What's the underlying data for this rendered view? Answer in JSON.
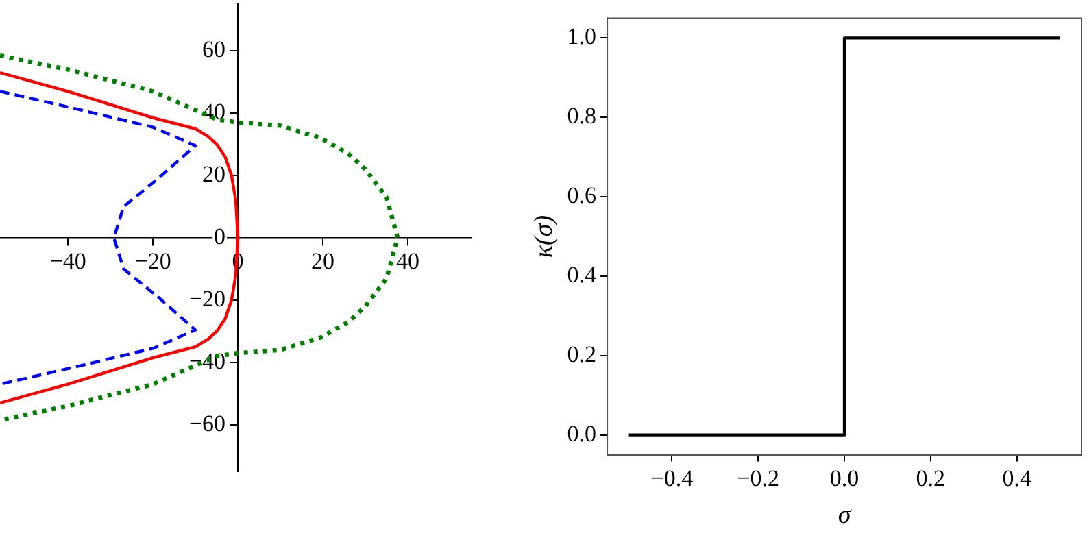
{
  "chart_data": [
    {
      "type": "line",
      "xlim": [
        -56,
        55
      ],
      "ylim": [
        -75,
        75
      ],
      "xticks": [
        {
          "value": -40,
          "label": "−40"
        },
        {
          "value": -20,
          "label": "−20"
        },
        0,
        20,
        40
      ],
      "yticks": [
        {
          "value": -60,
          "label": "−60"
        },
        {
          "value": -40,
          "label": "−40"
        },
        {
          "value": -20,
          "label": "−20"
        },
        0,
        20,
        40,
        60
      ],
      "grid": false,
      "legend": false,
      "marker": "none",
      "series": [
        {
          "color": "#ff0000",
          "line_style": "solid",
          "x": [
            -56,
            -40,
            -20,
            -10,
            -7,
            -5,
            -3,
            -1.5,
            -0.5,
            0,
            -0.5,
            -1.5,
            -3,
            -5,
            -7,
            -10,
            -20,
            -40,
            -56
          ],
          "values": [
            53,
            47,
            38.5,
            35,
            32.5,
            30,
            26,
            20,
            12,
            0,
            -12,
            -20,
            -26,
            -30,
            -32.5,
            -35,
            -38.5,
            -47,
            -53
          ]
        },
        {
          "color": "#0000ff",
          "line_style": "dashed",
          "x": [
            -56,
            -40,
            -20,
            -10,
            -13,
            -18.8,
            -26.9,
            -29.2,
            -26.9,
            -18.8,
            -13,
            -10,
            -20,
            -40,
            -56
          ],
          "values": [
            47,
            42,
            35.5,
            29.6,
            26,
            19,
            10,
            0,
            -10,
            -19,
            -26,
            -29.6,
            -35.5,
            -42,
            -47
          ]
        },
        {
          "color": "#008000",
          "line_style": "dotted",
          "x": [
            -56,
            -40,
            -20,
            -10,
            -5,
            0,
            10,
            19.5,
            26,
            30,
            35,
            37.6,
            35,
            30,
            26,
            19.5,
            10,
            0,
            -5,
            -10,
            -20,
            -40,
            -56
          ],
          "values": [
            58.5,
            54,
            47,
            41,
            38,
            37,
            36,
            32,
            27,
            22,
            13,
            0,
            -13,
            -22,
            -27,
            -32,
            -36,
            -37,
            -38,
            -41,
            -47,
            -54,
            -58.5
          ]
        }
      ]
    },
    {
      "type": "line",
      "xlabel": "σ",
      "ylabel": "κ(σ)",
      "xlim": [
        -0.55,
        0.55
      ],
      "ylim": [
        -0.05,
        1.05
      ],
      "xticks": [
        {
          "value": -0.4,
          "label": "−0.4"
        },
        {
          "value": -0.2,
          "label": "−0.2"
        },
        {
          "value": 0,
          "label": "0.0"
        },
        {
          "value": 0.2,
          "label": "0.2"
        },
        {
          "value": 0.4,
          "label": "0.4"
        }
      ],
      "yticks": [
        {
          "value": 0,
          "label": "0.0"
        },
        {
          "value": 0.2,
          "label": "0.2"
        },
        {
          "value": 0.4,
          "label": "0.4"
        },
        {
          "value": 0.6,
          "label": "0.6"
        },
        {
          "value": 0.8,
          "label": "0.8"
        },
        {
          "value": 1,
          "label": "1.0"
        }
      ],
      "grid": false,
      "legend": false,
      "marker": "none",
      "series": [
        {
          "color": "#000000",
          "line_style": "solid",
          "x": [
            -0.5,
            0,
            0,
            0.5
          ],
          "values": [
            0,
            0,
            1,
            1
          ]
        }
      ]
    }
  ]
}
